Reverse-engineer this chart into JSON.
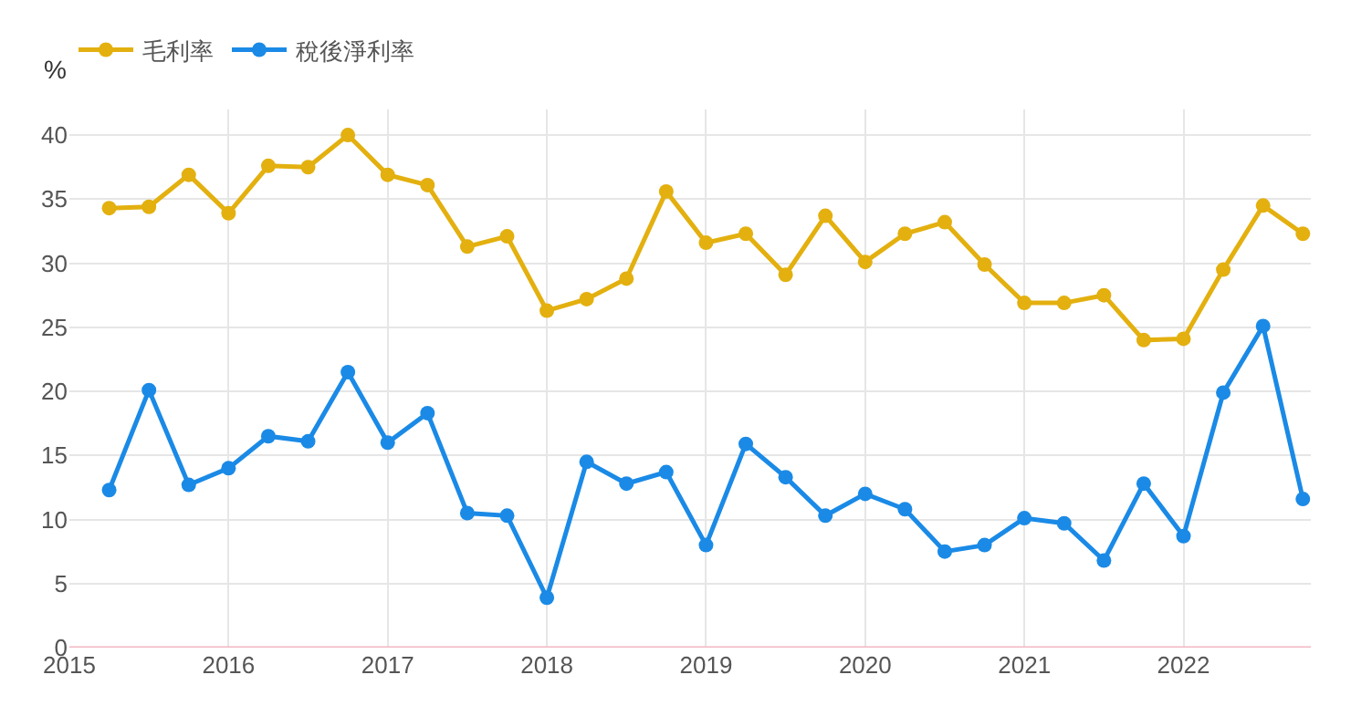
{
  "chart_data": {
    "type": "line",
    "ylabel": "%",
    "x": [
      2015.25,
      2015.5,
      2015.75,
      2016,
      2016.25,
      2016.5,
      2016.75,
      2017,
      2017.25,
      2017.5,
      2017.75,
      2018,
      2018.25,
      2018.5,
      2018.75,
      2019,
      2019.25,
      2019.5,
      2019.75,
      2020,
      2020.25,
      2020.5,
      2020.75,
      2021,
      2021.25,
      2021.5,
      2021.75,
      2022,
      2022.25,
      2022.5,
      2022.75
    ],
    "series": [
      {
        "name": "毛利率",
        "color": "#e3b00f",
        "values": [
          34.3,
          34.4,
          36.9,
          33.9,
          37.6,
          37.5,
          40,
          36.9,
          36.1,
          31.3,
          32.1,
          26.3,
          27.2,
          28.8,
          35.6,
          31.6,
          32.3,
          29.1,
          33.7,
          30.1,
          32.3,
          33.2,
          29.9,
          26.9,
          26.9,
          27.5,
          24,
          24.1,
          29.5,
          34.5,
          32.3
        ]
      },
      {
        "name": "稅後淨利率",
        "color": "#1a8ae6",
        "values": [
          12.3,
          20.1,
          12.7,
          14,
          16.5,
          16.1,
          21.5,
          16,
          18.3,
          10.5,
          10.3,
          3.9,
          14.5,
          12.8,
          13.7,
          8,
          15.9,
          13.3,
          10.3,
          12,
          10.8,
          7.5,
          8,
          10.1,
          9.7,
          6.8,
          12.8,
          8.7,
          19.9,
          25.1,
          11.6
        ]
      }
    ],
    "xlim": [
      2015,
      2022.8
    ],
    "xticks": [
      2015,
      2016,
      2017,
      2018,
      2019,
      2020,
      2021,
      2022
    ],
    "ylim": [
      0,
      42
    ],
    "yticks": [
      0,
      5,
      10,
      15,
      20,
      25,
      30,
      35,
      40
    ],
    "grid": true,
    "legend": "top left",
    "marker": "circle",
    "line_style": "solid"
  }
}
